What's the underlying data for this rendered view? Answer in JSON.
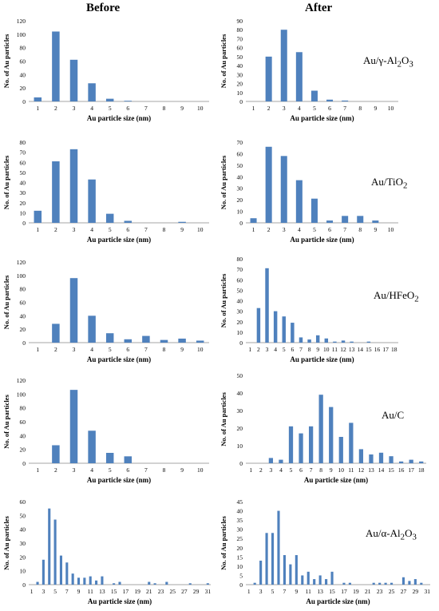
{
  "headers": {
    "before": "Before",
    "after": "After"
  },
  "colors": {
    "bar": "#4f81bd",
    "axis": "#a6a6a6"
  },
  "materials": [
    {
      "label": "Au/γ-Al",
      "sub": "2",
      "label2": "O",
      "sub2": "3"
    },
    {
      "label": "Au/TiO",
      "sub": "2",
      "label2": "",
      "sub2": ""
    },
    {
      "label": "Au/HFeO",
      "sub": "2",
      "label2": "",
      "sub2": ""
    },
    {
      "label": "Au/C",
      "sub": "",
      "label2": "",
      "sub2": ""
    },
    {
      "label": "Au/α-Al",
      "sub": "2",
      "label2": "O",
      "sub2": "3"
    }
  ],
  "chart_data": [
    {
      "type": "bar",
      "id": "r1-before",
      "xlabel": "Au particle size (nm)",
      "ylabel": "No. of Au particles",
      "categories": [
        "1",
        "2",
        "3",
        "4",
        "5",
        "6",
        "7",
        "8",
        "9",
        "10"
      ],
      "values": [
        6,
        104,
        62,
        27,
        4,
        1,
        0,
        0,
        0,
        0
      ],
      "ylim": [
        0,
        120
      ],
      "yticks": [
        0,
        20,
        40,
        60,
        80,
        100,
        120
      ]
    },
    {
      "type": "bar",
      "id": "r1-after",
      "xlabel": "Au particle size (nm)",
      "ylabel": "No. of Au particles",
      "categories": [
        "1",
        "2",
        "3",
        "4",
        "5",
        "6",
        "7",
        "8",
        "9",
        "10"
      ],
      "values": [
        0,
        50,
        80,
        55,
        12,
        2,
        1,
        0,
        0,
        0
      ],
      "ylim": [
        0,
        90
      ],
      "yticks": [
        0,
        10,
        20,
        30,
        40,
        50,
        60,
        70,
        80,
        90
      ]
    },
    {
      "type": "bar",
      "id": "r2-before",
      "xlabel": "Au particle size (nm)",
      "ylabel": "No. of Au particles",
      "categories": [
        "1",
        "2",
        "3",
        "4",
        "5",
        "6",
        "7",
        "8",
        "9",
        "10"
      ],
      "values": [
        12,
        61,
        73,
        43,
        9,
        2,
        0,
        0,
        1,
        0
      ],
      "ylim": [
        0,
        80
      ],
      "yticks": [
        0,
        10,
        20,
        30,
        40,
        50,
        60,
        70,
        80
      ]
    },
    {
      "type": "bar",
      "id": "r2-after",
      "xlabel": "Au particle size (nm)",
      "ylabel": "No. of Au particles",
      "categories": [
        "1",
        "2",
        "3",
        "4",
        "5",
        "6",
        "7",
        "8",
        "9",
        "10"
      ],
      "values": [
        4,
        66,
        58,
        37,
        21,
        2,
        6,
        6,
        2,
        0
      ],
      "ylim": [
        0,
        70
      ],
      "yticks": [
        0,
        10,
        20,
        30,
        40,
        50,
        60,
        70
      ]
    },
    {
      "type": "bar",
      "id": "r3-before",
      "xlabel": "Au particle size (nm)",
      "ylabel": "No. of Au particles",
      "categories": [
        "1",
        "2",
        "3",
        "4",
        "5",
        "6",
        "7",
        "8",
        "9",
        "10"
      ],
      "values": [
        0,
        28,
        96,
        40,
        14,
        5,
        10,
        4,
        6,
        3
      ],
      "ylim": [
        0,
        120
      ],
      "yticks": [
        0,
        20,
        40,
        60,
        80,
        100,
        120
      ]
    },
    {
      "type": "bar",
      "id": "r3-after",
      "xlabel": "Au particle size (nm)",
      "ylabel": "No. of Au particles",
      "categories": [
        "1",
        "2",
        "3",
        "4",
        "5",
        "6",
        "7",
        "8",
        "9",
        "10",
        "11",
        "12",
        "13",
        "14",
        "15",
        "16",
        "17",
        "18"
      ],
      "values": [
        0,
        33,
        71,
        30,
        25,
        19,
        5,
        3,
        7,
        4,
        1,
        2,
        1,
        0,
        1,
        0,
        0,
        0
      ],
      "ylim": [
        0,
        80
      ],
      "yticks": [
        0,
        10,
        20,
        30,
        40,
        50,
        60,
        70,
        80
      ]
    },
    {
      "type": "bar",
      "id": "r4-before",
      "xlabel": "Au particle size (nm)",
      "ylabel": "No. of Au particles",
      "categories": [
        "1",
        "2",
        "3",
        "4",
        "5",
        "6",
        "7",
        "8",
        "9",
        "10"
      ],
      "values": [
        0,
        26,
        106,
        47,
        15,
        10,
        0,
        0,
        0,
        0
      ],
      "ylim": [
        0,
        120
      ],
      "yticks": [
        0,
        20,
        40,
        60,
        80,
        100,
        120
      ]
    },
    {
      "type": "bar",
      "id": "r4-after",
      "xlabel": "Au particle size (nm)",
      "ylabel": "No. of Au particles",
      "categories": [
        "1",
        "2",
        "3",
        "4",
        "5",
        "6",
        "7",
        "8",
        "9",
        "10",
        "11",
        "12",
        "13",
        "14",
        "15",
        "16",
        "17",
        "18"
      ],
      "values": [
        0,
        0,
        3,
        2,
        21,
        17,
        21,
        39,
        32,
        15,
        23,
        8,
        5,
        6,
        4,
        1,
        2,
        1
      ],
      "ylim": [
        0,
        50
      ],
      "yticks": [
        0,
        10,
        20,
        30,
        40,
        50
      ]
    },
    {
      "type": "bar",
      "id": "r5-before",
      "xlabel": "Au particle size (nm)",
      "ylabel": "No. of Au particles",
      "categories": [
        "1",
        "2",
        "3",
        "4",
        "5",
        "6",
        "7",
        "8",
        "9",
        "10",
        "11",
        "12",
        "13",
        "14",
        "15",
        "16",
        "17",
        "18",
        "19",
        "20",
        "21",
        "22",
        "23",
        "24",
        "25",
        "26",
        "27",
        "28",
        "29",
        "30",
        "31"
      ],
      "tick_labels": [
        "1",
        "3",
        "5",
        "7",
        "9",
        "11",
        "13",
        "15",
        "17",
        "19",
        "21",
        "23",
        "25",
        "27",
        "29",
        "31"
      ],
      "values": [
        0,
        2,
        18,
        55,
        47,
        21,
        16,
        8,
        5,
        5,
        6,
        3,
        6,
        0,
        1,
        2,
        0,
        0,
        0,
        0,
        2,
        1,
        0,
        2,
        0,
        0,
        0,
        1,
        0,
        0,
        1
      ],
      "ylim": [
        0,
        60
      ],
      "yticks": [
        0,
        10,
        20,
        30,
        40,
        50,
        60
      ]
    },
    {
      "type": "bar",
      "id": "r5-after",
      "xlabel": "Au particle size (nm)",
      "ylabel": "No. of Au particles",
      "categories": [
        "1",
        "2",
        "3",
        "4",
        "5",
        "6",
        "7",
        "8",
        "9",
        "10",
        "11",
        "12",
        "13",
        "14",
        "15",
        "16",
        "17",
        "18",
        "19",
        "20",
        "21",
        "22",
        "23",
        "24",
        "25",
        "26",
        "27",
        "28",
        "29",
        "30",
        "31"
      ],
      "tick_labels": [
        "1",
        "3",
        "5",
        "7",
        "9",
        "11",
        "13",
        "15",
        "17",
        "19",
        "21",
        "23",
        "25",
        "27",
        "29",
        "31"
      ],
      "values": [
        0,
        1,
        13,
        28,
        28,
        40,
        16,
        11,
        16,
        5,
        7,
        3,
        5,
        3,
        7,
        0,
        1,
        1,
        0,
        0,
        0,
        1,
        1,
        1,
        1,
        0,
        4,
        2,
        3,
        1,
        0
      ],
      "ylim": [
        0,
        45
      ],
      "yticks": [
        0,
        5,
        10,
        15,
        20,
        25,
        30,
        35,
        40,
        45
      ]
    }
  ]
}
